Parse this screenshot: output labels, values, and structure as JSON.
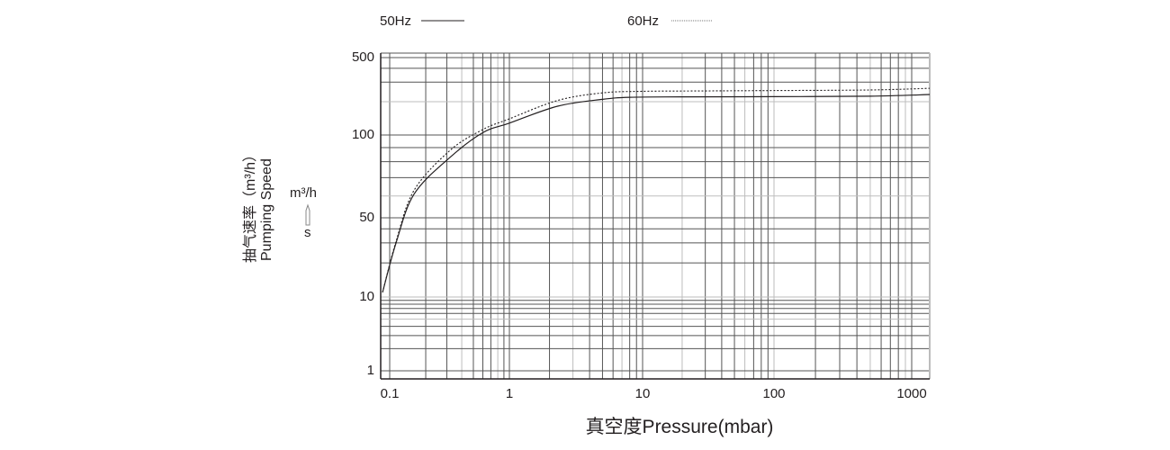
{
  "chart_data": {
    "type": "line",
    "title": "",
    "xlabel": "真空度Pressure(mbar)",
    "ylabel_cn": "抽气速率（m³/h）",
    "ylabel_en": "Pumping Speed",
    "unit_top": "m³/h",
    "unit_bottom": "s",
    "x_scale": "log",
    "y_scale": "log",
    "xlim": [
      0.09,
      1300
    ],
    "ylim": [
      1,
      500
    ],
    "x_ticks": [
      "0.1",
      "1",
      "10",
      "100",
      "1000"
    ],
    "y_ticks": [
      "500",
      "100",
      "50",
      "10",
      "1"
    ],
    "grid": true,
    "legend_position": "top",
    "series": [
      {
        "name": "50Hz",
        "style": "solid",
        "color": "#231f20",
        "x": [
          0.092,
          0.113,
          0.16,
          0.32,
          0.6,
          1,
          2.3,
          5,
          8,
          20,
          100,
          500,
          1300
        ],
        "y": [
          11,
          30,
          61,
          83,
          105,
          128,
          182,
          210,
          219,
          221,
          222,
          224,
          232
        ]
      },
      {
        "name": "60Hz",
        "style": "dotted",
        "color": "#231f20",
        "x": [
          0.092,
          0.113,
          0.16,
          0.32,
          0.6,
          1,
          2.3,
          5,
          10,
          30,
          100,
          500,
          1300
        ],
        "y": [
          11,
          31,
          63,
          88,
          112,
          140,
          205,
          240,
          248,
          250,
          252,
          255,
          264
        ]
      }
    ]
  }
}
